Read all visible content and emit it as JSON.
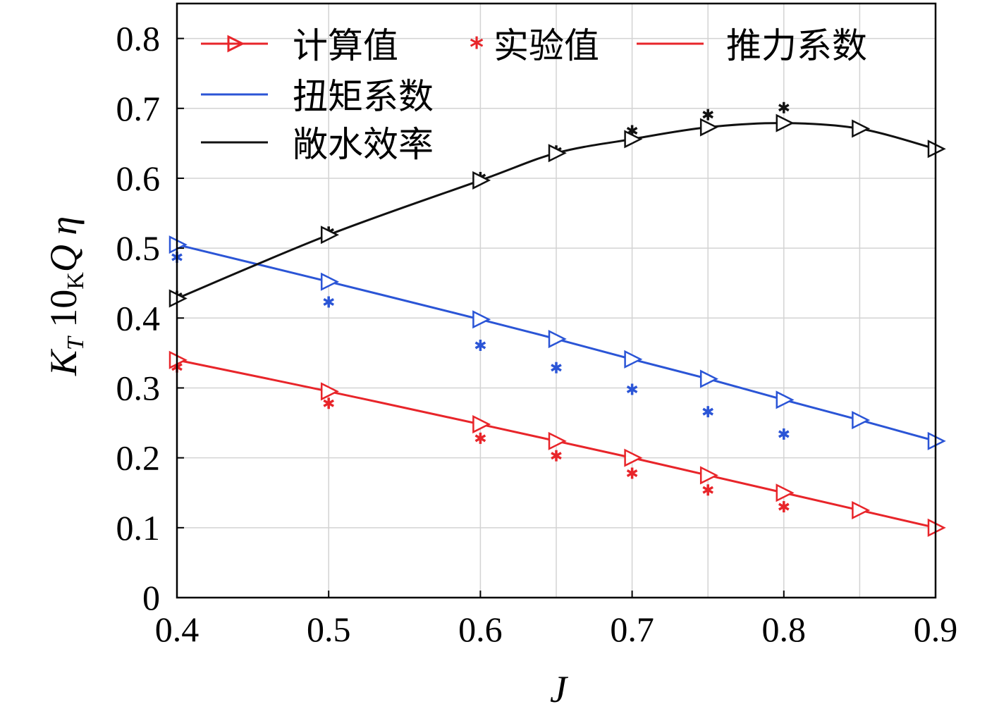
{
  "chart_data": {
    "type": "line",
    "xlabel": "J",
    "ylabel": {
      "kt_main": "K",
      "kt_sub": "T",
      "kq_prefix": "10",
      "kq_sub": "K",
      "kq_main": "Q",
      "eta": "η"
    },
    "xlim": [
      0.4,
      0.9
    ],
    "ylim": [
      0,
      0.85
    ],
    "x_ticks": [
      "0.4",
      "0.5",
      "0.6",
      "0.7",
      "0.8",
      "0.9"
    ],
    "y_ticks": [
      "0",
      "0.1",
      "0.2",
      "0.3",
      "0.4",
      "0.5",
      "0.6",
      "0.7",
      "0.8"
    ],
    "grid": true,
    "legend_position": "top-left",
    "legend": {
      "computed": "计算值",
      "experimental": "实验值",
      "thrust": "推力系数",
      "torque": "扭矩系数",
      "efficiency": "敞水效率"
    },
    "colors": {
      "thrust": "#e8252a",
      "torque": "#2b55d6",
      "efficiency": "#111111",
      "grid": "#d3d3d3"
    },
    "series": [
      {
        "key": "thrust",
        "name": "推力系数",
        "computed": {
          "x": [
            0.4,
            0.5,
            0.6,
            0.65,
            0.7,
            0.75,
            0.8,
            0.85,
            0.9
          ],
          "y": [
            0.34,
            0.295,
            0.248,
            0.224,
            0.2,
            0.175,
            0.15,
            0.125,
            0.1
          ]
        },
        "experimental": {
          "x": [
            0.4,
            0.5,
            0.6,
            0.65,
            0.7,
            0.75,
            0.8
          ],
          "y": [
            0.33,
            0.278,
            0.228,
            0.203,
            0.178,
            0.154,
            0.13
          ]
        }
      },
      {
        "key": "torque",
        "name": "扭矩系数",
        "computed": {
          "x": [
            0.4,
            0.5,
            0.6,
            0.65,
            0.7,
            0.75,
            0.8,
            0.85,
            0.9
          ],
          "y": [
            0.505,
            0.452,
            0.398,
            0.37,
            0.341,
            0.313,
            0.283,
            0.254,
            0.224
          ]
        },
        "experimental": {
          "x": [
            0.4,
            0.5,
            0.6,
            0.65,
            0.7,
            0.75,
            0.8
          ],
          "y": [
            0.487,
            0.423,
            0.361,
            0.329,
            0.298,
            0.266,
            0.234
          ]
        }
      },
      {
        "key": "efficiency",
        "name": "敞水效率",
        "computed": {
          "x": [
            0.4,
            0.5,
            0.6,
            0.65,
            0.7,
            0.75,
            0.8,
            0.85,
            0.9
          ],
          "y": [
            0.428,
            0.519,
            0.597,
            0.636,
            0.656,
            0.673,
            0.679,
            0.671,
            0.642
          ]
        },
        "experimental": {
          "x": [
            0.4,
            0.5,
            0.6,
            0.65,
            0.7,
            0.75,
            0.8
          ],
          "y": [
            0.431,
            0.523,
            0.601,
            0.639,
            0.668,
            0.691,
            0.701
          ]
        }
      }
    ]
  }
}
